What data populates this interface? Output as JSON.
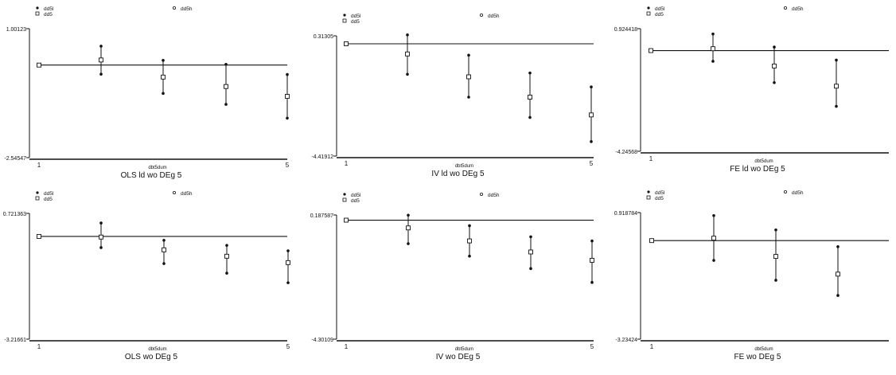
{
  "colors": {
    "ink": "#111111",
    "background": "#ffffff",
    "axis": "#111111"
  },
  "chart_data": [
    {
      "type": "errorbar",
      "title": "OLS ld wo DEg 5",
      "xlabel": "dbt5dum",
      "ylabel": "",
      "legend": [
        "dd5l",
        "dd5",
        "dd5h"
      ],
      "xlim": [
        1,
        5
      ],
      "ylim": [
        -2.54547,
        1.00123
      ],
      "y_ticks": [
        "1.00123",
        "-2.54547"
      ],
      "x_ticks": [
        "1",
        "5"
      ],
      "grid": false,
      "x": [
        1,
        2,
        3,
        4,
        5
      ],
      "series": [
        {
          "name": "dd5l",
          "marker": "dot",
          "values": [
            0.0,
            -0.25,
            -0.78,
            -1.08,
            -1.46
          ]
        },
        {
          "name": "dd5",
          "marker": "square",
          "values": [
            0.0,
            0.14,
            -0.33,
            -0.59,
            -0.86
          ]
        },
        {
          "name": "dd5h",
          "marker": "dot",
          "values": [
            0.0,
            0.52,
            0.13,
            0.02,
            -0.26
          ]
        }
      ],
      "reference_line": 0.0
    },
    {
      "type": "errorbar",
      "title": "IV ld wo DEg 5",
      "xlabel": "dbt5dum",
      "ylabel": "",
      "legend": [
        "dd5l",
        "dd5",
        "dd5h"
      ],
      "xlim": [
        1,
        5
      ],
      "ylim": [
        -4.41912,
        0.31305
      ],
      "y_ticks": [
        "0.31305",
        "-4.41912"
      ],
      "x_ticks": [
        "1",
        "5"
      ],
      "grid": false,
      "x": [
        1,
        2,
        3,
        4,
        5
      ],
      "series": [
        {
          "name": "dd5l",
          "marker": "dot",
          "values": [
            0.0,
            -1.2,
            -2.1,
            -2.9,
            -3.85
          ]
        },
        {
          "name": "dd5",
          "marker": "square",
          "values": [
            0.0,
            -0.4,
            -1.3,
            -2.1,
            -2.8
          ]
        },
        {
          "name": "dd5h",
          "marker": "dot",
          "values": [
            0.0,
            0.35,
            -0.45,
            -1.15,
            -1.7
          ]
        }
      ],
      "reference_line": 0.0
    },
    {
      "type": "errorbar",
      "title": "FE ld wo DEg 5",
      "xlabel": "dbt5dum",
      "ylabel": "",
      "legend": [
        "dd5l",
        "dd5",
        "dd5h"
      ],
      "xlim": [
        1,
        5
      ],
      "ylim": [
        -4.24568,
        0.924418
      ],
      "y_ticks": [
        "0.924418",
        "-4.24568"
      ],
      "x_ticks": [
        "1"
      ],
      "grid": false,
      "x": [
        1,
        2,
        3,
        4
      ],
      "series": [
        {
          "name": "dd5l",
          "marker": "dot",
          "values": [
            0.0,
            -0.45,
            -1.35,
            -2.35
          ]
        },
        {
          "name": "dd5",
          "marker": "square",
          "values": [
            0.0,
            0.08,
            -0.65,
            -1.5
          ]
        },
        {
          "name": "dd5h",
          "marker": "dot",
          "values": [
            0.0,
            0.7,
            0.15,
            -0.4
          ]
        }
      ],
      "reference_line": 0.0
    },
    {
      "type": "errorbar",
      "title": "OLS wo DEg 5",
      "xlabel": "dbt5dum",
      "ylabel": "",
      "legend": [
        "dd5l",
        "dd5",
        "dd5h"
      ],
      "xlim": [
        1,
        5
      ],
      "ylim": [
        -3.21661,
        0.721363
      ],
      "y_ticks": [
        "0.721363",
        "-3.21661"
      ],
      "x_ticks": [
        "1",
        "5"
      ],
      "grid": false,
      "x": [
        1,
        2,
        3,
        4,
        5
      ],
      "series": [
        {
          "name": "dd5l",
          "marker": "dot",
          "values": [
            0.0,
            -0.35,
            -0.85,
            -1.15,
            -1.45
          ]
        },
        {
          "name": "dd5",
          "marker": "square",
          "values": [
            0.0,
            -0.02,
            -0.42,
            -0.62,
            -0.82
          ]
        },
        {
          "name": "dd5h",
          "marker": "dot",
          "values": [
            0.0,
            0.42,
            -0.12,
            -0.28,
            -0.45
          ]
        }
      ],
      "reference_line": 0.0
    },
    {
      "type": "errorbar",
      "title": "IV wo DEg 5",
      "xlabel": "dbt5dum",
      "ylabel": "",
      "legend": [
        "dd5l",
        "dd5",
        "dd5h"
      ],
      "xlim": [
        1,
        5
      ],
      "ylim": [
        -4.30109,
        0.187587
      ],
      "y_ticks": [
        "0.187587",
        "-4.30109"
      ],
      "x_ticks": [
        "1",
        "5"
      ],
      "grid": false,
      "x": [
        1,
        2,
        3,
        4,
        5
      ],
      "series": [
        {
          "name": "dd5l",
          "marker": "dot",
          "values": [
            0.0,
            -0.85,
            -1.3,
            -1.75,
            -2.25
          ]
        },
        {
          "name": "dd5",
          "marker": "square",
          "values": [
            0.0,
            -0.28,
            -0.75,
            -1.15,
            -1.45
          ]
        },
        {
          "name": "dd5h",
          "marker": "dot",
          "values": [
            0.0,
            0.18,
            -0.2,
            -0.6,
            -0.75
          ]
        }
      ],
      "reference_line": 0.0
    },
    {
      "type": "errorbar",
      "title": "FE wo DEg 5",
      "xlabel": "dbt5dum",
      "ylabel": "",
      "legend": [
        "dd5l",
        "dd5",
        "dd5h"
      ],
      "xlim": [
        1,
        5
      ],
      "ylim": [
        -3.23424,
        0.918784
      ],
      "y_ticks": [
        "0.918784",
        "-3.23424"
      ],
      "x_ticks": [
        "1"
      ],
      "grid": false,
      "x": [
        1,
        2,
        3,
        4
      ],
      "series": [
        {
          "name": "dd5l",
          "marker": "dot",
          "values": [
            0.0,
            -0.65,
            -1.3,
            -1.8
          ]
        },
        {
          "name": "dd5",
          "marker": "square",
          "values": [
            0.0,
            0.08,
            -0.52,
            -1.1
          ]
        },
        {
          "name": "dd5h",
          "marker": "dot",
          "values": [
            0.0,
            0.82,
            0.35,
            -0.2
          ]
        }
      ],
      "reference_line": 0.0
    }
  ]
}
